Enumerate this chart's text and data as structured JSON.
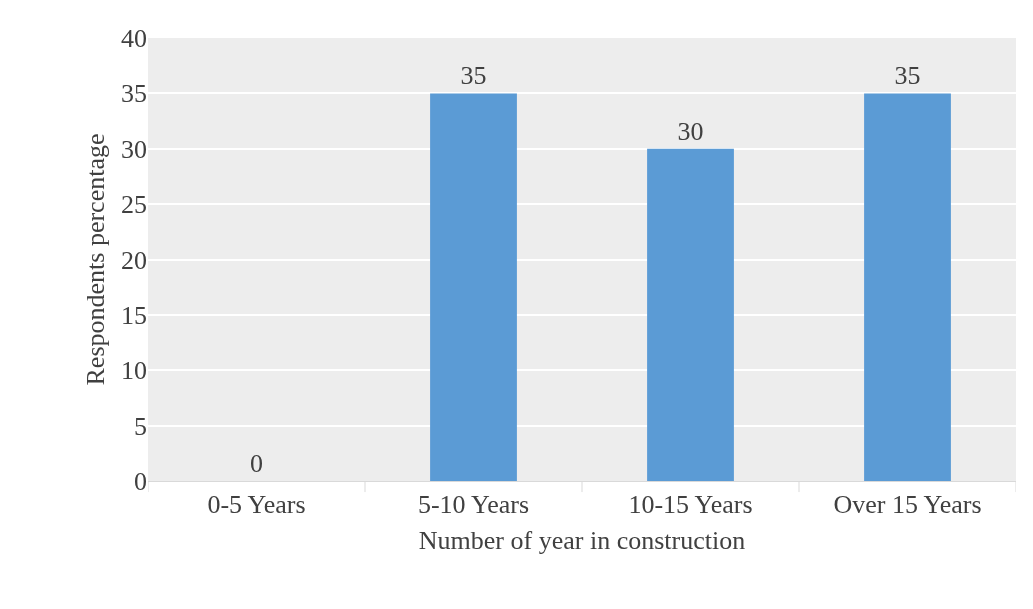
{
  "chart_data": {
    "type": "bar",
    "xlabel": "Number of year in construction",
    "ylabel": "Respondents percentage",
    "categories": [
      "0-5 Years",
      "5-10 Years",
      "10-15 Years",
      "Over 15 Years"
    ],
    "values": [
      0,
      35,
      30,
      35
    ],
    "color": "#5b9bd5",
    "ylim": [
      0,
      40
    ],
    "yticks": [
      0,
      5,
      10,
      15,
      20,
      25,
      30,
      35,
      40
    ],
    "grid": "y",
    "data_labels": true,
    "legend": false
  }
}
